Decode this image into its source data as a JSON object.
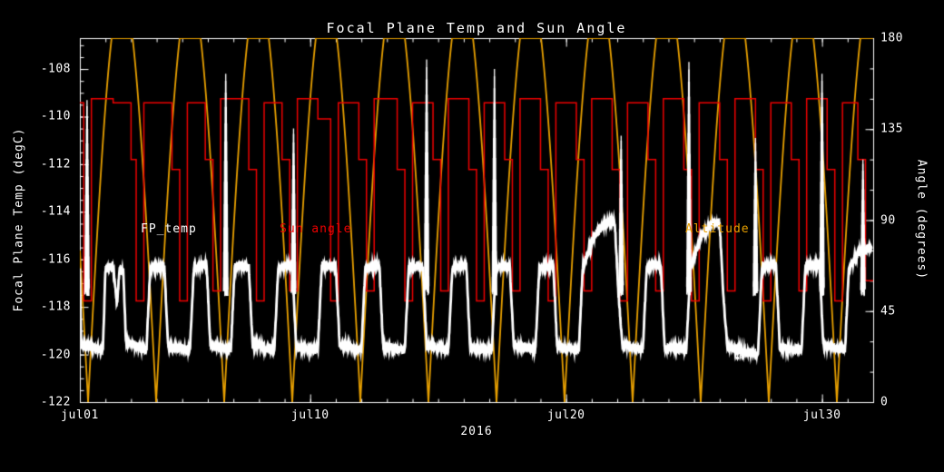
{
  "colors": {
    "background": "#000000",
    "axis": "#ffffff"
  },
  "chart_data": {
    "type": "line",
    "title": "Focal Plane Temp and Sun Angle",
    "xlabel": "2016",
    "x_axis": {
      "range_days": [
        1,
        32
      ],
      "minor_tick_every_days": 1,
      "major_ticks": [
        {
          "day": 1,
          "label": "jul01"
        },
        {
          "day": 10,
          "label": "jul10"
        },
        {
          "day": 20,
          "label": "jul20"
        },
        {
          "day": 30,
          "label": "jul30"
        }
      ]
    },
    "left_axis": {
      "label": "Focal Plane Temp (degC)",
      "range": [
        -122,
        -106.7
      ],
      "major_ticks": [
        -108,
        -110,
        -112,
        -114,
        -116,
        -118,
        -120,
        -122
      ],
      "minor_step": 0.5
    },
    "right_axis": {
      "label": "Angle (degrees)",
      "range": [
        0,
        180
      ],
      "major_ticks": [
        0,
        45,
        90,
        135,
        180
      ],
      "minor_step": 15
    },
    "annotations": [
      {
        "text": "FP_temp",
        "color": "#ffffff"
      },
      {
        "text": "Sun angle",
        "color": "#ee0000"
      },
      {
        "text": "Altitude",
        "color": "#e8a000"
      }
    ],
    "series": [
      {
        "name": "Altitude",
        "color": "#e8a000",
        "type": "arch",
        "axis": "right",
        "period_days": 2.66,
        "phase_day": 1.32,
        "max": 180,
        "overshoot": 1.13
      },
      {
        "name": "Sun angle",
        "color": "#ee0000",
        "type": "step",
        "axis": "right",
        "points": [
          [
            1.0,
            148
          ],
          [
            1.15,
            50
          ],
          [
            1.45,
            150
          ],
          [
            2.3,
            148
          ],
          [
            3.0,
            120
          ],
          [
            3.2,
            50
          ],
          [
            3.5,
            148
          ],
          [
            4.6,
            115
          ],
          [
            4.9,
            50
          ],
          [
            5.2,
            148
          ],
          [
            5.9,
            120
          ],
          [
            6.2,
            55
          ],
          [
            6.5,
            150
          ],
          [
            7.6,
            115
          ],
          [
            7.9,
            50
          ],
          [
            8.2,
            148
          ],
          [
            8.9,
            120
          ],
          [
            9.2,
            55
          ],
          [
            9.5,
            150
          ],
          [
            10.3,
            140
          ],
          [
            10.8,
            50
          ],
          [
            11.1,
            148
          ],
          [
            11.9,
            120
          ],
          [
            12.2,
            55
          ],
          [
            12.5,
            150
          ],
          [
            13.4,
            115
          ],
          [
            13.7,
            50
          ],
          [
            14.0,
            148
          ],
          [
            14.8,
            120
          ],
          [
            15.1,
            55
          ],
          [
            15.4,
            150
          ],
          [
            16.2,
            115
          ],
          [
            16.5,
            50
          ],
          [
            16.8,
            148
          ],
          [
            17.6,
            120
          ],
          [
            17.9,
            55
          ],
          [
            18.2,
            150
          ],
          [
            19.0,
            115
          ],
          [
            19.3,
            50
          ],
          [
            19.6,
            148
          ],
          [
            20.4,
            120
          ],
          [
            20.7,
            55
          ],
          [
            21.0,
            150
          ],
          [
            21.8,
            115
          ],
          [
            22.1,
            50
          ],
          [
            22.4,
            148
          ],
          [
            23.2,
            120
          ],
          [
            23.5,
            55
          ],
          [
            23.8,
            150
          ],
          [
            24.6,
            115
          ],
          [
            24.9,
            50
          ],
          [
            25.2,
            148
          ],
          [
            26.0,
            120
          ],
          [
            26.3,
            55
          ],
          [
            26.6,
            150
          ],
          [
            27.4,
            115
          ],
          [
            27.7,
            50
          ],
          [
            28.0,
            148
          ],
          [
            28.8,
            120
          ],
          [
            29.1,
            55
          ],
          [
            29.4,
            150
          ],
          [
            30.2,
            115
          ],
          [
            30.5,
            50
          ],
          [
            30.8,
            148
          ],
          [
            31.4,
            120
          ],
          [
            31.7,
            60
          ]
        ]
      },
      {
        "name": "FP_temp",
        "color": "#ffffff",
        "type": "temp_line",
        "axis": "left",
        "noise": 0.12,
        "points": [
          [
            1.0,
            -116.5
          ],
          [
            1.05,
            -119.6
          ],
          [
            1.9,
            -119.8
          ],
          [
            2.0,
            -116.4
          ],
          [
            2.3,
            -116.3
          ],
          [
            2.45,
            -117.9
          ],
          [
            2.55,
            -116.4
          ],
          [
            2.7,
            -116.5
          ],
          [
            2.8,
            -119.5
          ],
          [
            3.6,
            -119.8
          ],
          [
            3.75,
            -116.4
          ],
          [
            4.3,
            -116.3
          ],
          [
            4.45,
            -119.7
          ],
          [
            5.3,
            -119.8
          ],
          [
            5.45,
            -116.4
          ],
          [
            5.95,
            -116.2
          ],
          [
            6.1,
            -119.6
          ],
          [
            6.9,
            -119.8
          ],
          [
            7.05,
            -116.3
          ],
          [
            7.6,
            -116.3
          ],
          [
            7.75,
            -119.6
          ],
          [
            8.6,
            -119.8
          ],
          [
            8.75,
            -116.4
          ],
          [
            9.3,
            -116.2
          ],
          [
            9.45,
            -119.7
          ],
          [
            10.3,
            -119.8
          ],
          [
            10.45,
            -116.3
          ],
          [
            11.0,
            -116.3
          ],
          [
            11.15,
            -119.6
          ],
          [
            12.0,
            -119.8
          ],
          [
            12.15,
            -116.4
          ],
          [
            12.7,
            -116.2
          ],
          [
            12.85,
            -119.7
          ],
          [
            13.7,
            -119.8
          ],
          [
            13.85,
            -116.3
          ],
          [
            14.4,
            -116.3
          ],
          [
            14.55,
            -119.6
          ],
          [
            15.4,
            -119.8
          ],
          [
            15.55,
            -116.4
          ],
          [
            16.1,
            -116.2
          ],
          [
            16.25,
            -119.7
          ],
          [
            17.1,
            -119.8
          ],
          [
            17.25,
            -116.3
          ],
          [
            17.8,
            -116.3
          ],
          [
            17.95,
            -119.6
          ],
          [
            18.8,
            -119.8
          ],
          [
            18.95,
            -116.4
          ],
          [
            19.5,
            -116.2
          ],
          [
            19.65,
            -119.7
          ],
          [
            20.5,
            -119.8
          ],
          [
            20.65,
            -116.3
          ],
          [
            21.1,
            -115.0
          ],
          [
            21.5,
            -114.5
          ],
          [
            21.9,
            -114.4
          ],
          [
            22.05,
            -117.5
          ],
          [
            22.2,
            -119.6
          ],
          [
            23.0,
            -119.8
          ],
          [
            23.15,
            -116.3
          ],
          [
            23.7,
            -116.2
          ],
          [
            23.85,
            -119.7
          ],
          [
            24.7,
            -119.8
          ],
          [
            24.85,
            -116.4
          ],
          [
            25.3,
            -115.0
          ],
          [
            25.7,
            -114.5
          ],
          [
            26.0,
            -114.5
          ],
          [
            26.15,
            -117.6
          ],
          [
            26.3,
            -119.7
          ],
          [
            27.1,
            -119.9
          ],
          [
            27.5,
            -120.0
          ],
          [
            27.65,
            -116.3
          ],
          [
            28.2,
            -116.2
          ],
          [
            28.35,
            -119.7
          ],
          [
            29.2,
            -119.8
          ],
          [
            29.35,
            -116.3
          ],
          [
            29.9,
            -116.2
          ],
          [
            30.05,
            -119.6
          ],
          [
            30.9,
            -119.8
          ],
          [
            31.05,
            -116.4
          ],
          [
            31.5,
            -115.6
          ],
          [
            31.9,
            -115.5
          ]
        ],
        "spike_base": -117.3,
        "spike_width_days": 0.18,
        "spikes": [
          {
            "day": 1.28,
            "peak": -109.3
          },
          {
            "day": 6.7,
            "peak": -108.2
          },
          {
            "day": 9.35,
            "peak": -110.5
          },
          {
            "day": 14.55,
            "peak": -107.6
          },
          {
            "day": 17.2,
            "peak": -108.0
          },
          {
            "day": 22.15,
            "peak": -110.8
          },
          {
            "day": 24.8,
            "peak": -107.7
          },
          {
            "day": 27.4,
            "peak": -110.9
          },
          {
            "day": 30.0,
            "peak": -108.2
          },
          {
            "day": 31.6,
            "peak": -111.8
          }
        ],
        "outlier_markers": [
          [
            26.7,
            -120.15
          ],
          [
            26.9,
            -120.1
          ]
        ]
      }
    ]
  }
}
